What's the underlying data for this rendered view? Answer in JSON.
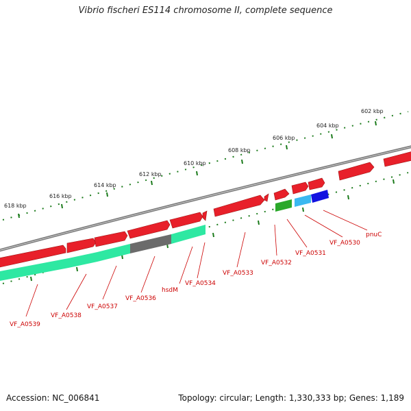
{
  "header": {
    "title": "Vibrio fischeri ES114 chromosome II, complete sequence"
  },
  "footer": {
    "accession": "Accession: NC_006841",
    "summary": "Topology: circular; Length: 1,330,333 bp; Genes: 1,189"
  },
  "colors": {
    "backbone": "#7a7a7a",
    "gene_forward": "#e8202a",
    "cds": "#2ee8a2",
    "cds_grey": "#6b6b6b",
    "cds_green": "#2aa82a",
    "cds_cyan": "#3ab8f0",
    "cds_blue": "#1212e0",
    "tick": "#1a7a1a",
    "label": "#cc0000"
  },
  "scale_labels": [
    "618 kbp",
    "616 kbp",
    "614 kbp",
    "612 kbp",
    "610 kbp",
    "608 kbp",
    "606 kbp",
    "604 kbp",
    "602 kbp"
  ],
  "gene_labels": [
    "VF_A0539",
    "VF_A0538",
    "VF_A0537",
    "VF_A0536",
    "hsdM",
    "VF_A0534",
    "VF_A0533",
    "VF_A0532",
    "VF_A0531",
    "VF_A0530",
    "pnuC"
  ]
}
